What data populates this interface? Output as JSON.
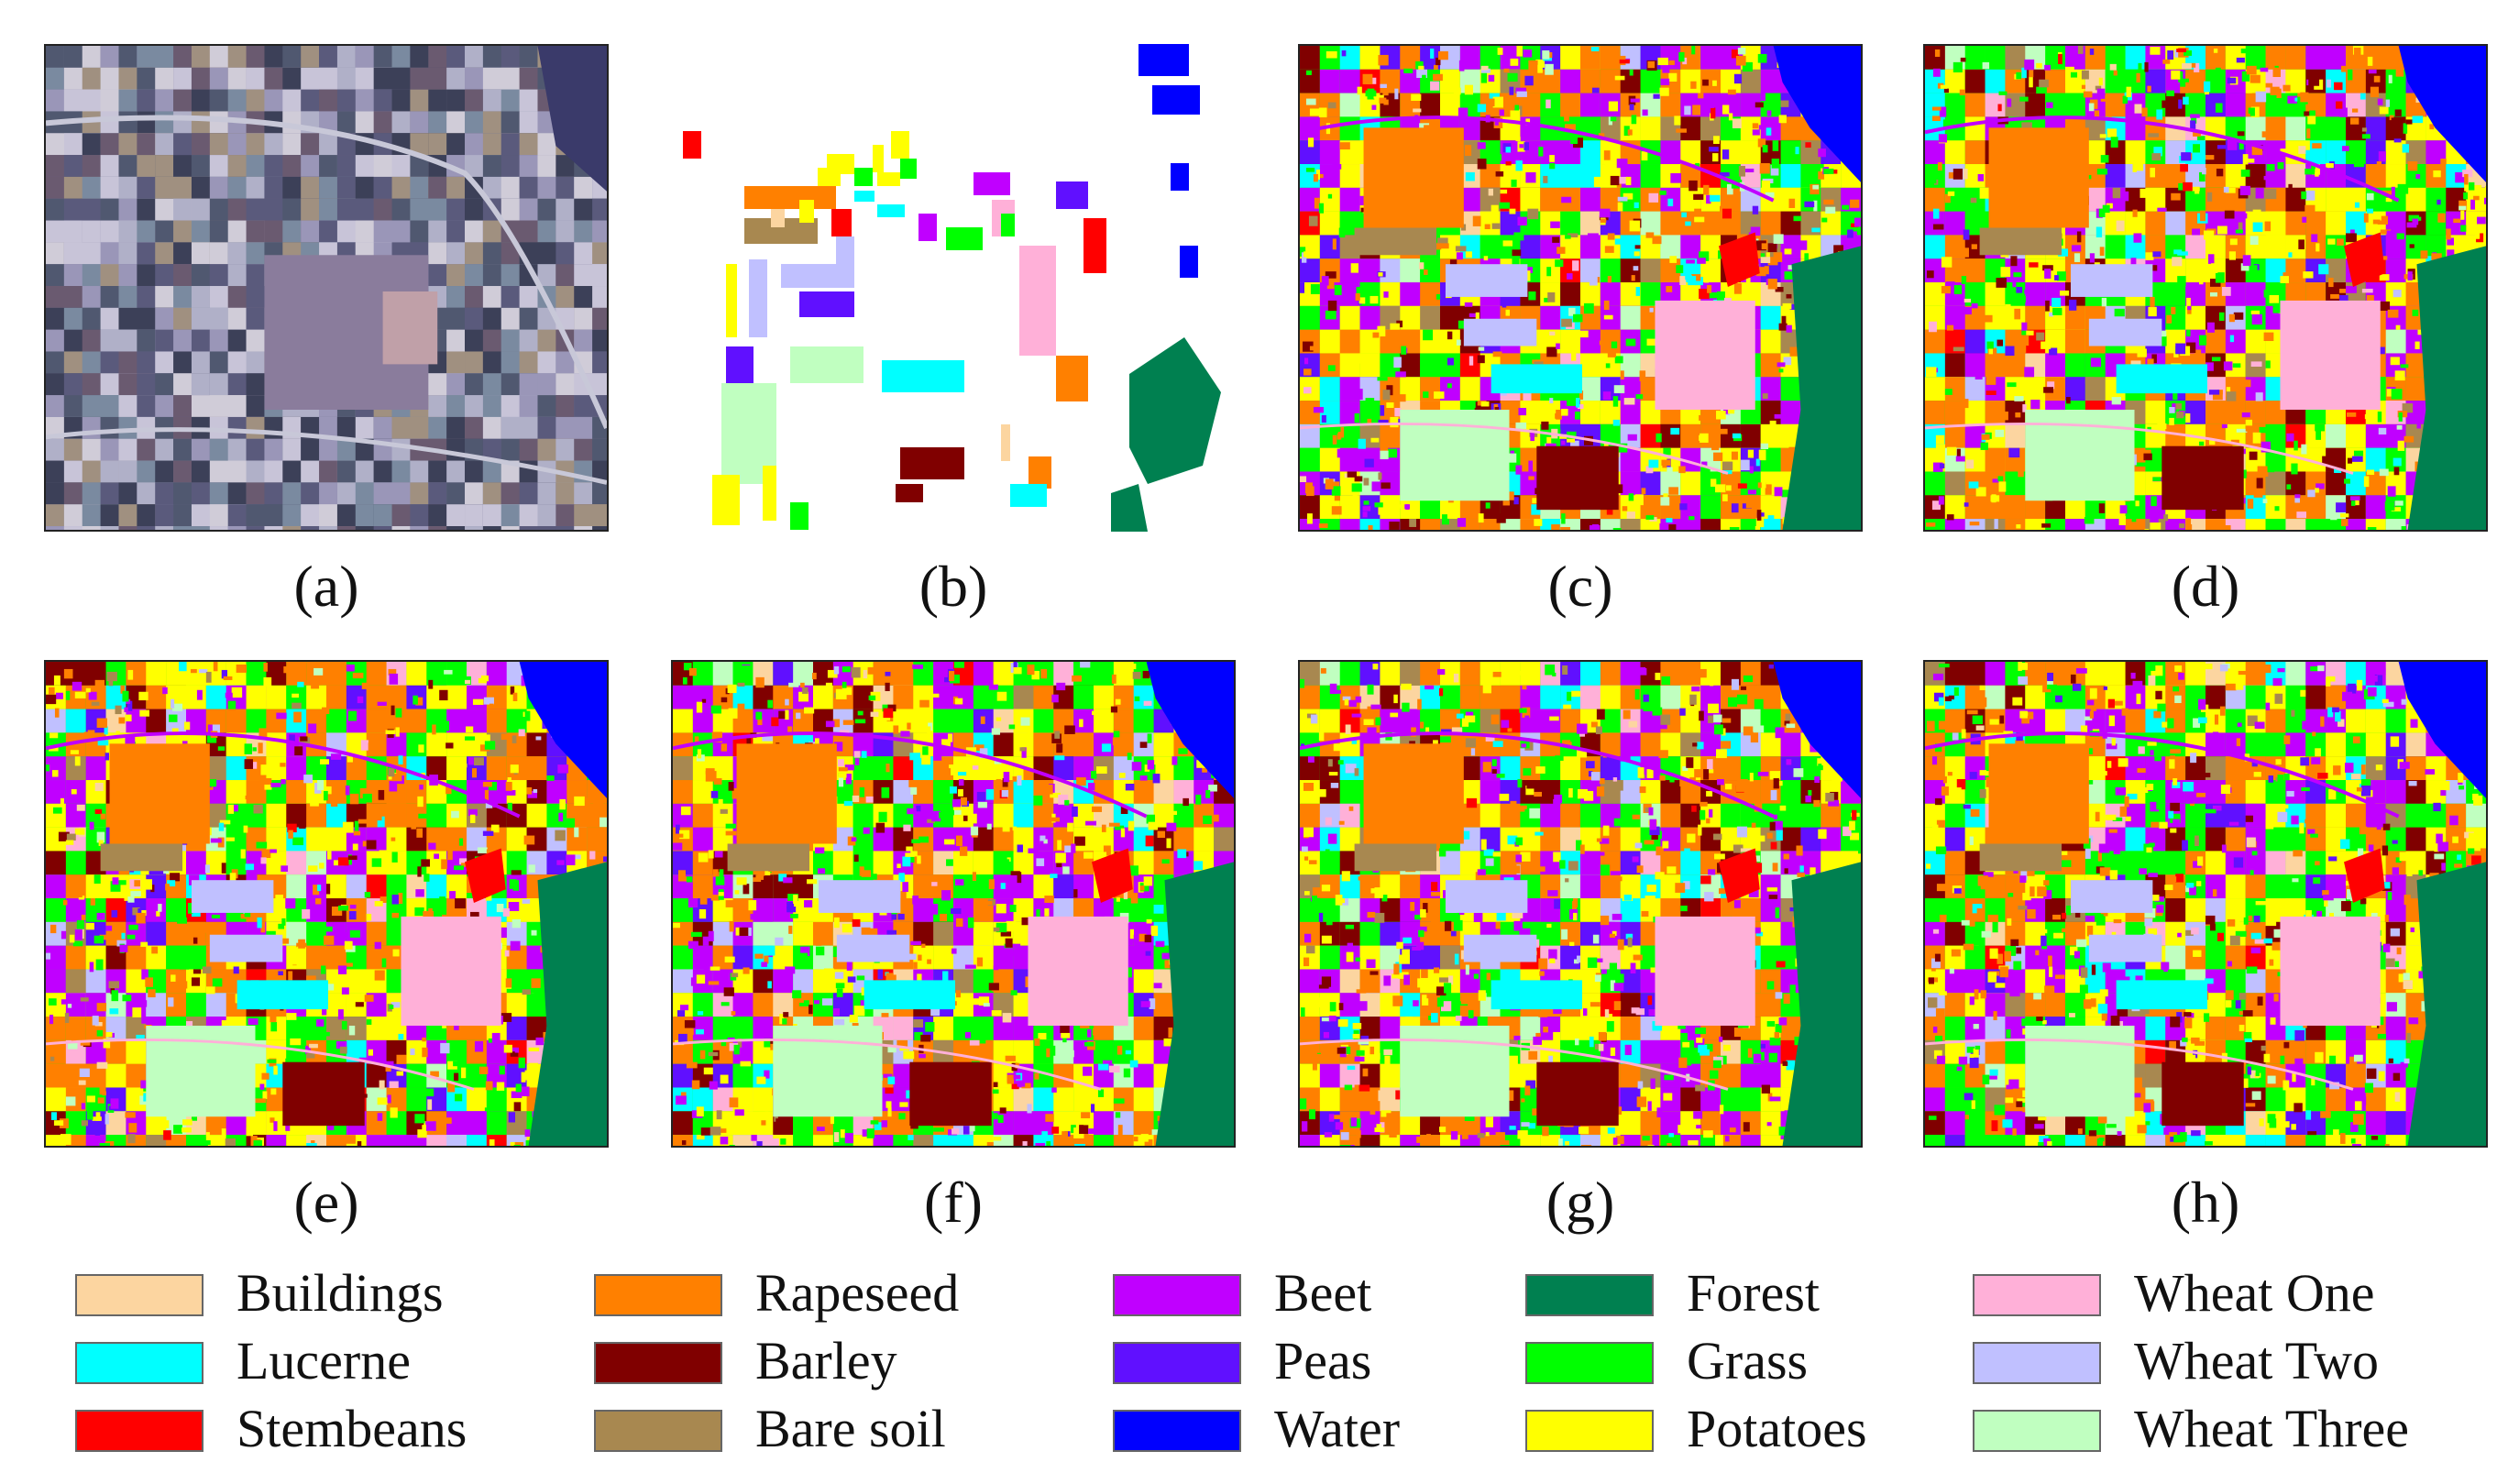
{
  "panels": [
    {
      "id": "a",
      "caption": "(a)",
      "kind": "sar"
    },
    {
      "id": "b",
      "caption": "(b)",
      "kind": "groundtruth"
    },
    {
      "id": "c",
      "caption": "(c)",
      "kind": "classmap"
    },
    {
      "id": "d",
      "caption": "(d)",
      "kind": "classmap"
    },
    {
      "id": "e",
      "caption": "(e)",
      "kind": "classmap"
    },
    {
      "id": "f",
      "caption": "(f)",
      "kind": "classmap"
    },
    {
      "id": "g",
      "caption": "(g)",
      "kind": "classmap"
    },
    {
      "id": "h",
      "caption": "(h)",
      "kind": "classmap"
    }
  ],
  "legend": [
    {
      "label": "Buildings",
      "color": "#fcd5a0"
    },
    {
      "label": "Lucerne",
      "color": "#00ffff"
    },
    {
      "label": "Stembeans",
      "color": "#ff0000"
    },
    {
      "label": "Rapeseed",
      "color": "#ff8000"
    },
    {
      "label": "Barley",
      "color": "#800000"
    },
    {
      "label": "Bare soil",
      "color": "#a88850"
    },
    {
      "label": "Beet",
      "color": "#c000ff"
    },
    {
      "label": "Peas",
      "color": "#6010ff"
    },
    {
      "label": "Water",
      "color": "#0000ff"
    },
    {
      "label": "Forest",
      "color": "#008050"
    },
    {
      "label": "Grass",
      "color": "#00ff00"
    },
    {
      "label": "Potatoes",
      "color": "#ffff00"
    },
    {
      "label": "Wheat One",
      "color": "#ffb0d8"
    },
    {
      "label": "Wheat Two",
      "color": "#c0c0ff"
    },
    {
      "label": "Wheat Three",
      "color": "#c0ffc0"
    }
  ]
}
